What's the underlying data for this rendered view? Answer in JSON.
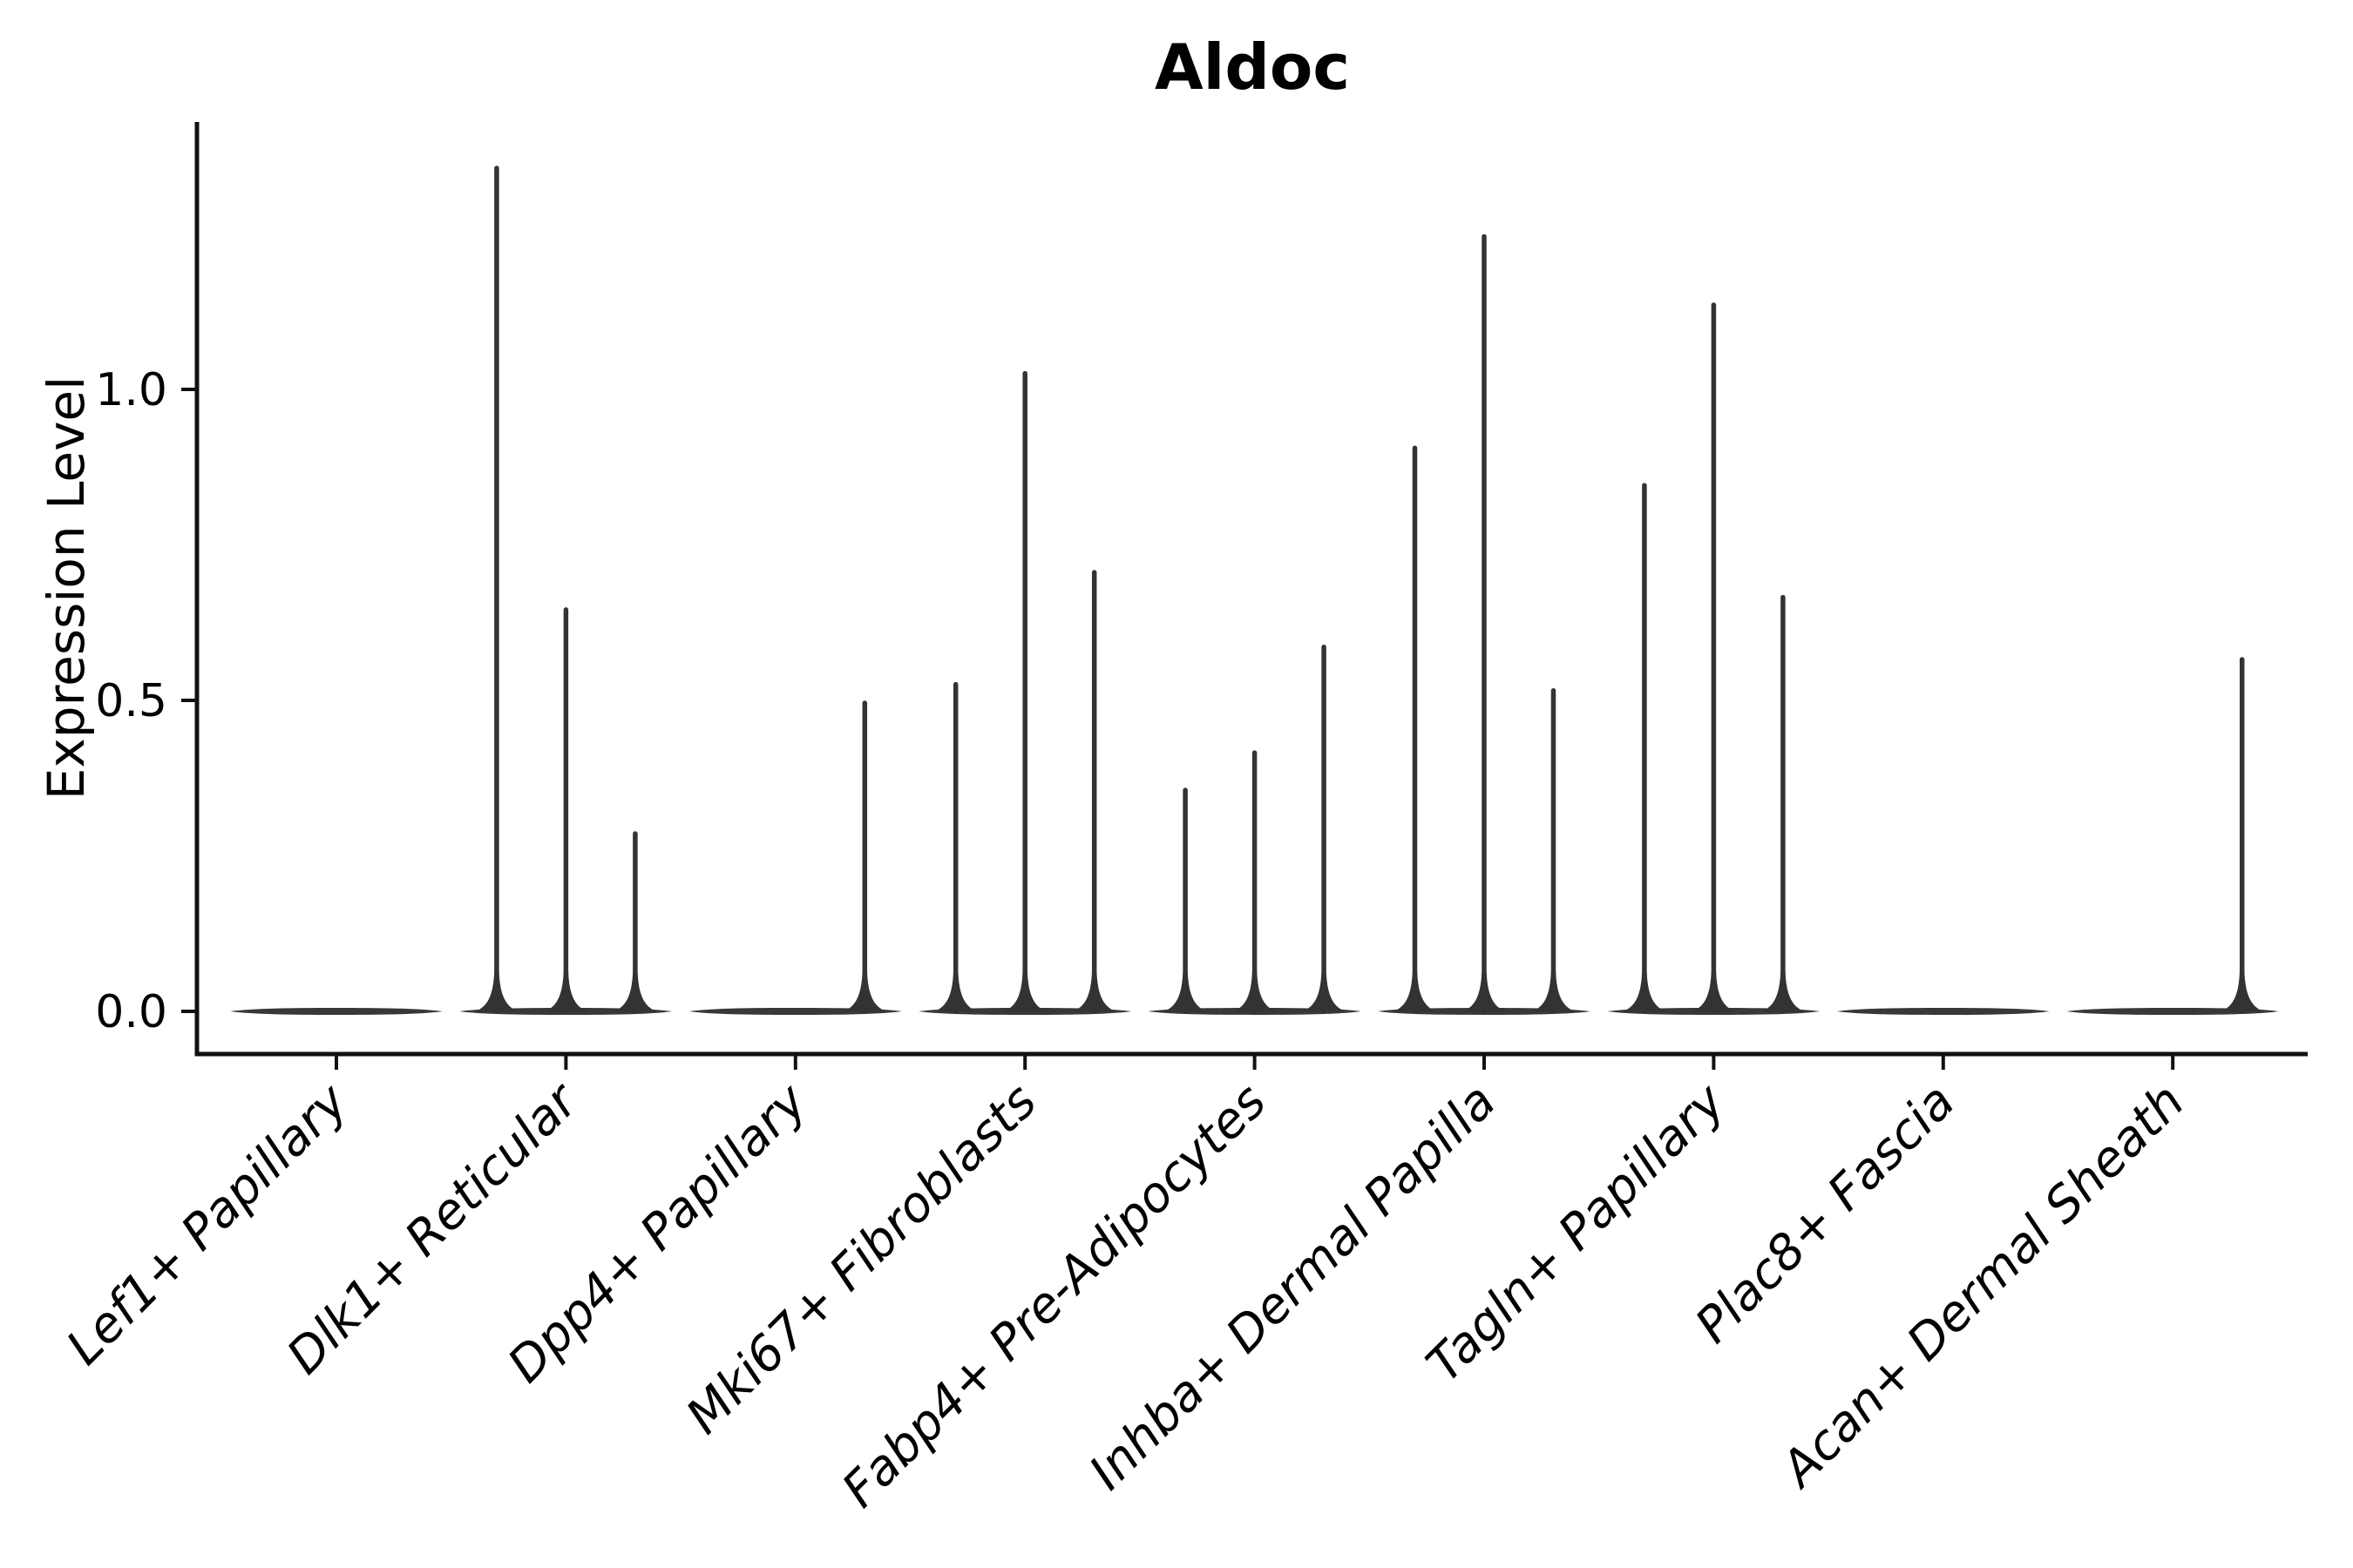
{
  "figure": {
    "title": "Aldoc",
    "ylabel": "Expression Level"
  },
  "chart_data": {
    "type": "violin",
    "title": "Aldoc",
    "xlabel": "",
    "ylabel": "Expression Level",
    "categories": [
      "Lef1+ Papillary",
      "Dlk1+ Reticular",
      "Dpp4+ Papillary",
      "Mki67+ Fibroblasts",
      "Fabp4+ Pre-Adipocytes",
      "Inhba+ Dermal Papilla",
      "Tagln+ Papillary",
      "Plac8+ Fascia",
      "Acan+ Dermal Sheath"
    ],
    "violins_per_category": 3,
    "series": [
      {
        "category": "Lef1+ Papillary",
        "peak_expression": [
          0,
          0,
          0
        ]
      },
      {
        "category": "Dlk1+ Reticular",
        "peak_expression": [
          1.36,
          0.65,
          0.29
        ]
      },
      {
        "category": "Dpp4+ Papillary",
        "peak_expression": [
          0,
          0,
          0.5
        ]
      },
      {
        "category": "Mki67+ Fibroblasts",
        "peak_expression": [
          0.53,
          1.03,
          0.71
        ]
      },
      {
        "category": "Fabp4+ Pre-Adipocytes",
        "peak_expression": [
          0.36,
          0.42,
          0.59
        ]
      },
      {
        "category": "Inhba+ Dermal Papilla",
        "peak_expression": [
          0.91,
          1.25,
          0.52
        ]
      },
      {
        "category": "Tagln+ Papillary",
        "peak_expression": [
          0.85,
          1.14,
          0.67
        ]
      },
      {
        "category": "Plac8+ Fascia",
        "peak_expression": [
          0,
          0,
          0
        ]
      },
      {
        "category": "Acan+ Dermal Sheath",
        "peak_expression": [
          0,
          0,
          0.57
        ]
      }
    ],
    "yticks": [
      "0.0",
      "0.5",
      "1.0"
    ],
    "ytick_values": [
      0.0,
      0.5,
      1.0
    ],
    "ylim": [
      -0.07,
      1.43
    ],
    "grid": false,
    "legend_position": "none",
    "colors": {
      "violin": "#333333",
      "spine": "#111111",
      "text": "#000000",
      "background": "#ffffff"
    }
  }
}
